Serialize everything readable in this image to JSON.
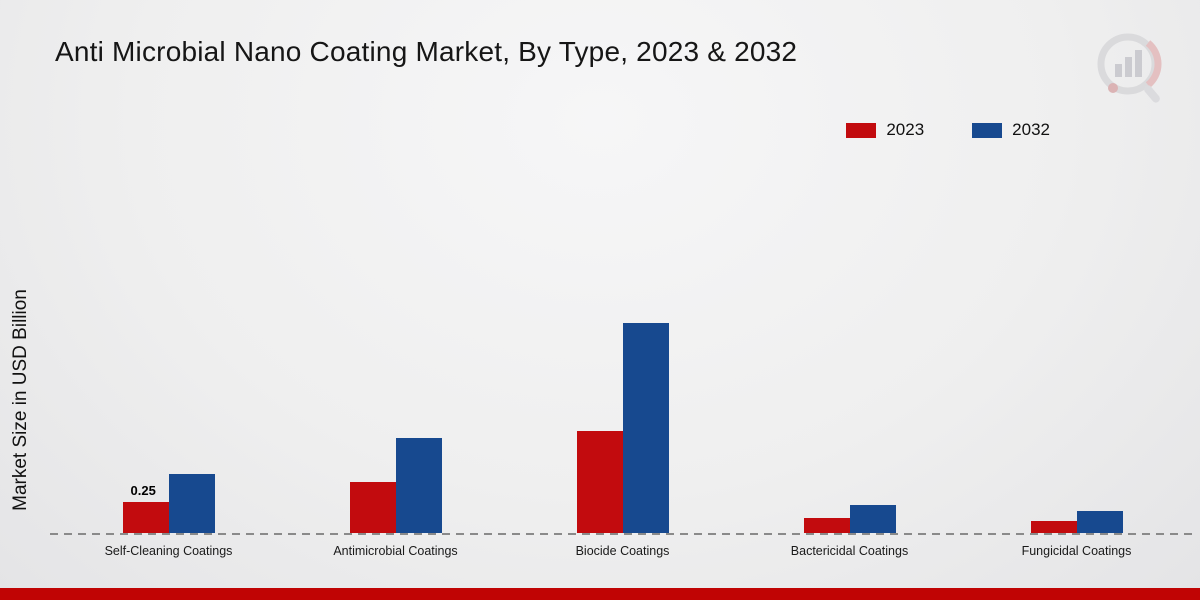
{
  "header": {
    "title": "Anti Microbial Nano Coating Market, By Type, 2023 & 2032"
  },
  "legend": [
    {
      "label": "2023",
      "color": "#c20b0e"
    },
    {
      "label": "2032",
      "color": "#17498f"
    }
  ],
  "y_axis": {
    "label": "Market Size in USD Billion"
  },
  "chart_data": {
    "type": "bar",
    "title": "Anti Microbial Nano Coating Market, By Type, 2023 & 2032",
    "xlabel": "",
    "ylabel": "Market Size in USD Billion",
    "unit": "USD Billion",
    "legend_position": "top-right",
    "baseline_style": "dashed",
    "categories": [
      "Self-Cleaning Coatings",
      "Antimicrobial Coatings",
      "Biocide Coatings",
      "Bactericidal Coatings",
      "Fungicidal Coatings"
    ],
    "series": [
      {
        "name": "2023",
        "color": "#c20b0e",
        "values": [
          0.25,
          0.41,
          0.82,
          0.12,
          0.1
        ]
      },
      {
        "name": "2032",
        "color": "#17498f",
        "values": [
          0.48,
          0.77,
          1.69,
          0.23,
          0.18
        ]
      }
    ],
    "annotations": [
      {
        "category_index": 0,
        "series_index": 0,
        "text": "0.25"
      }
    ]
  },
  "footer": {
    "bar_color": "#c00404"
  }
}
